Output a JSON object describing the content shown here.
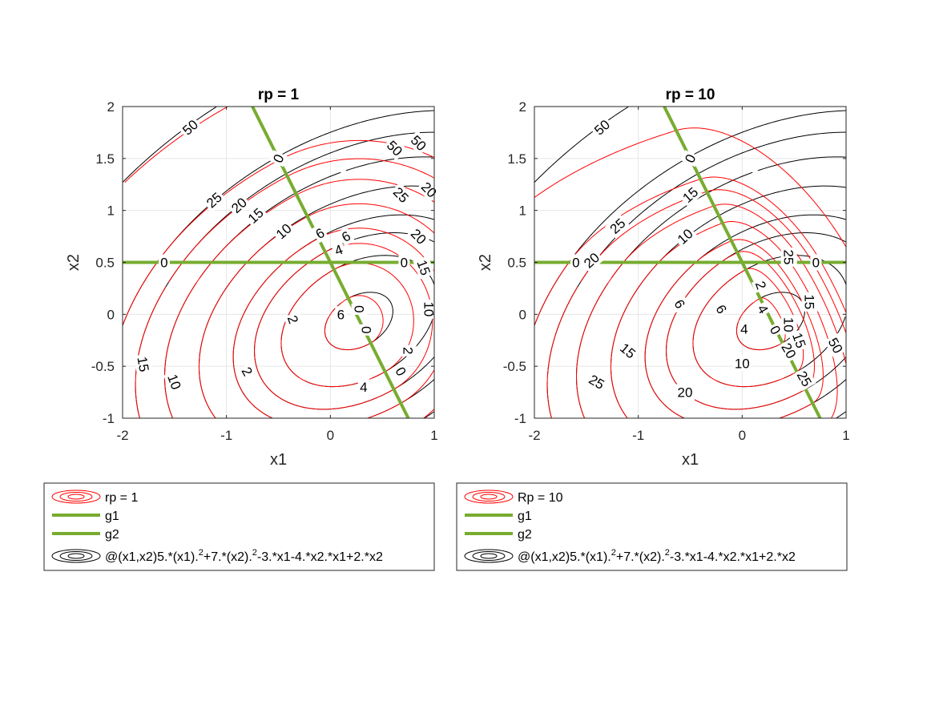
{
  "chart_data": [
    {
      "type": "contour",
      "title": "rp = 1",
      "xlabel": "x1",
      "ylabel": "x2",
      "xlim": [
        -2,
        1
      ],
      "ylim": [
        -1,
        2
      ],
      "xticks": [
        "-2",
        "-1",
        "0",
        "1"
      ],
      "yticks": [
        "-1",
        "-0.5",
        "0",
        "0.5",
        "1",
        "1.5",
        "2"
      ],
      "grid": true,
      "rp": 1,
      "colors": {
        "objective": "#000000",
        "penalized": "#ff0000",
        "constraint": "#77ac30"
      },
      "objective_levels": [
        0,
        2,
        4,
        6,
        10,
        15,
        20,
        25,
        50
      ],
      "objective_labels": [
        "50",
        "25",
        "20",
        "15",
        "10",
        "6",
        "4",
        "0",
        "2",
        "4",
        "6",
        "10",
        "15",
        "20",
        "50"
      ],
      "penalized_labels": [
        "50",
        "25",
        "20",
        "15",
        "10",
        "6",
        "4",
        "2",
        "0",
        "0",
        "2",
        "6"
      ],
      "constraint_labels": [
        "0",
        "0",
        "0"
      ],
      "constraints": [
        {
          "name": "g1",
          "expression": "2*x1 + x2 - 0.5 = 0"
        },
        {
          "name": "g2",
          "expression": "x2 = 0.5"
        }
      ],
      "legend": {
        "placement": "below",
        "entries": [
          {
            "label": "rp = 1",
            "type": "contour-red"
          },
          {
            "label": "g1",
            "type": "line-green"
          },
          {
            "label": "g2",
            "type": "line-green"
          },
          {
            "label_parts": [
              "@(x1,x2)5.*(x1).",
              "2",
              "+7.*(x2).",
              "2",
              "-3.*x1-4.*x2.*x1+2.*x2"
            ],
            "type": "contour-black"
          }
        ]
      }
    },
    {
      "type": "contour",
      "title": "rp = 10",
      "xlabel": "x1",
      "ylabel": "x2",
      "xlim": [
        -2,
        1
      ],
      "ylim": [
        -1,
        2
      ],
      "xticks": [
        "-2",
        "-1",
        "0",
        "1"
      ],
      "yticks": [
        "-1",
        "-0.5",
        "0",
        "0.5",
        "1",
        "1.5",
        "2"
      ],
      "grid": true,
      "rp": 10,
      "colors": {
        "objective": "#000000",
        "penalized": "#ff0000",
        "constraint": "#77ac30"
      },
      "objective_levels": [
        0,
        2,
        4,
        6,
        10,
        15,
        20,
        25,
        50
      ],
      "objective_labels": [
        "50",
        "25",
        "20",
        "15",
        "10",
        "6",
        "4",
        "2",
        "0",
        "10",
        "15",
        "20",
        "25",
        "50"
      ],
      "penalized_labels": [
        "15",
        "20",
        "25",
        "6",
        "4",
        "10",
        "15",
        "25"
      ],
      "constraint_labels": [
        "0",
        "0",
        "0"
      ],
      "constraints": [
        {
          "name": "g1",
          "expression": "2*x1 + x2 - 0.5 = 0"
        },
        {
          "name": "g2",
          "expression": "x2 = 0.5"
        }
      ],
      "legend": {
        "placement": "below",
        "entries": [
          {
            "label": "Rp = 10",
            "type": "contour-red"
          },
          {
            "label": "g1",
            "type": "line-green"
          },
          {
            "label": "g2",
            "type": "line-green"
          },
          {
            "label_parts": [
              "@(x1,x2)5.*(x1).",
              "2",
              "+7.*(x2).",
              "2",
              "-3.*x1-4.*x2.*x1+2.*x2"
            ],
            "type": "contour-black"
          }
        ]
      }
    }
  ]
}
